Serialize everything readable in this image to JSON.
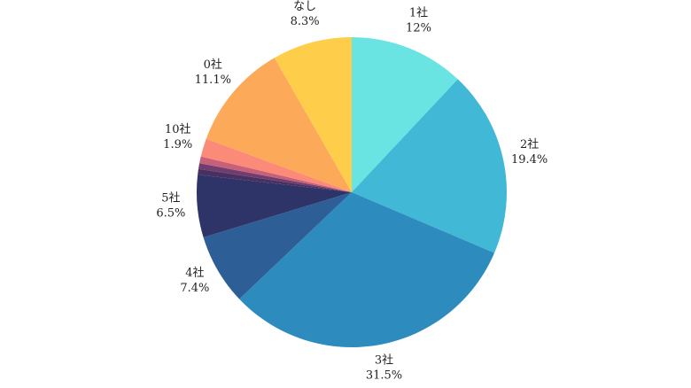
{
  "chart_data": {
    "type": "pie",
    "title": "",
    "start_angle_deg": 0,
    "direction": "clockwise",
    "legend": "none",
    "slices": [
      {
        "category": "1社",
        "label": "12%",
        "value": 12.0,
        "color": "#6AE3E3",
        "show_label": true
      },
      {
        "category": "2社",
        "label": "19.4%",
        "value": 19.4,
        "color": "#41B8D6",
        "show_label": true
      },
      {
        "category": "3社",
        "label": "31.5%",
        "value": 31.5,
        "color": "#2E8BBE",
        "show_label": true
      },
      {
        "category": "4社",
        "label": "7.4%",
        "value": 7.4,
        "color": "#2D5F96",
        "show_label": true
      },
      {
        "category": "5社",
        "label": "6.5%",
        "value": 6.5,
        "color": "#2E3468",
        "show_label": true
      },
      {
        "category": "",
        "label": "",
        "value": 0.6,
        "color": "#4A3060",
        "show_label": false
      },
      {
        "category": "",
        "label": "",
        "value": 0.6,
        "color": "#6E3E6E",
        "show_label": false
      },
      {
        "category": "",
        "label": "",
        "value": 0.7,
        "color": "#C9607A",
        "show_label": false
      },
      {
        "category": "10社",
        "label": "1.9%",
        "value": 1.9,
        "color": "#FB8A78",
        "show_label": true
      },
      {
        "category": "0社",
        "label": "11.1%",
        "value": 11.1,
        "color": "#FCA95A",
        "show_label": true
      },
      {
        "category": "なし",
        "label": "8.3%",
        "value": 8.3,
        "color": "#FECE4B",
        "show_label": true
      }
    ]
  }
}
